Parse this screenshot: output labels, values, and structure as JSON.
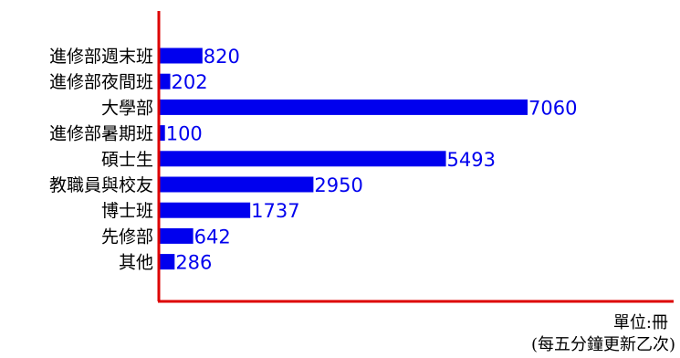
{
  "chart_data": {
    "type": "bar",
    "orientation": "horizontal",
    "categories": [
      "進修部週末班",
      "進修部夜間班",
      "大學部",
      "進修部暑期班",
      "碩士生",
      "教職員與校友",
      "博士班",
      "先修部",
      "其他"
    ],
    "values": [
      820,
      202,
      7060,
      100,
      5493,
      2950,
      1737,
      642,
      286
    ],
    "value_labels": [
      "820",
      "202",
      "7060",
      "100",
      "5493",
      "2950",
      "1737",
      "642",
      "286"
    ],
    "unit_label": "單位:冊",
    "note": "(每五分鐘更新乙次)",
    "xlim": [
      0,
      7060
    ],
    "grid": false,
    "colors": {
      "bar": "#0000ee",
      "value_text": "#0000ee",
      "axis": "#dd0000",
      "label_text": "#000000"
    }
  }
}
